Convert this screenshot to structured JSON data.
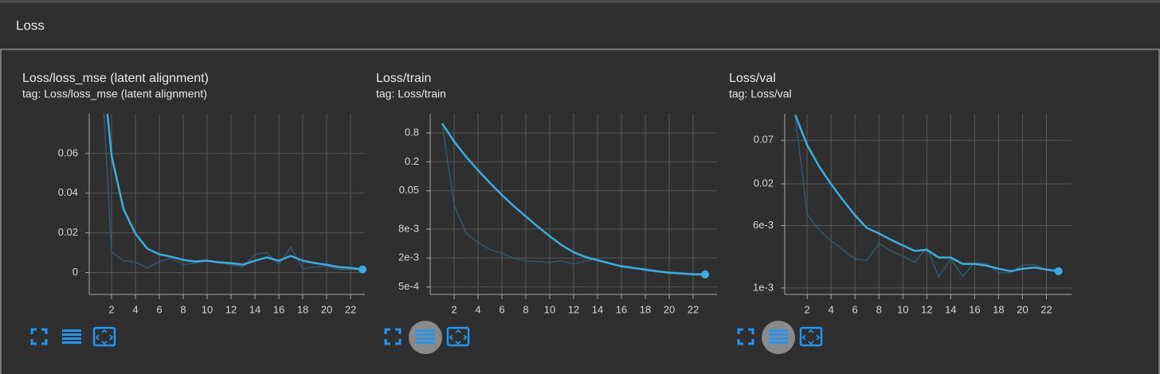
{
  "header": {
    "title": "Loss"
  },
  "chart_data": [
    {
      "type": "line",
      "title": "Loss/loss_mse (latent alignment)",
      "subtitle": "tag: Loss/loss_mse (latent alignment)",
      "x": [
        1,
        2,
        3,
        4,
        5,
        6,
        7,
        8,
        9,
        10,
        11,
        12,
        13,
        14,
        15,
        16,
        17,
        18,
        19,
        20,
        21,
        22,
        23
      ],
      "series": [
        {
          "color": "#34596a",
          "values": [
            0.12,
            0.0104,
            0.006,
            0.0052,
            0.0024,
            0.0056,
            0.0072,
            0.004,
            0.0048,
            0.006,
            0.0048,
            0.004,
            0.0028,
            0.0092,
            0.01,
            0.004,
            0.0128,
            0.002,
            0.0028,
            0.0032,
            0.0016,
            0.0016,
            0.0012
          ]
        },
        {
          "color": "#3aaee0",
          "values": [
            0.12,
            0.059,
            0.032,
            0.0196,
            0.012,
            0.0092,
            0.008,
            0.0064,
            0.0056,
            0.006,
            0.0052,
            0.0048,
            0.004,
            0.006,
            0.0076,
            0.006,
            0.0084,
            0.006,
            0.0048,
            0.004,
            0.0028,
            0.0024,
            0.0016
          ]
        }
      ],
      "xlim": [
        0.13,
        23.2
      ],
      "xticks": [
        2,
        4,
        6,
        8,
        10,
        12,
        14,
        16,
        18,
        20,
        22
      ],
      "ylim": [
        -0.011,
        0.08
      ],
      "yticks": [
        0,
        0.02,
        0.04,
        0.06
      ],
      "log_scale": false,
      "grid": true
    },
    {
      "type": "line",
      "title": "Loss/train",
      "subtitle": "tag: Loss/train",
      "x": [
        1,
        2,
        3,
        4,
        5,
        6,
        7,
        8,
        9,
        10,
        11,
        12,
        13,
        14,
        15,
        16,
        17,
        18,
        19,
        20,
        21,
        22,
        23
      ],
      "series": [
        {
          "color": "#34596a",
          "values": [
            1.26,
            0.025,
            0.0066,
            0.0042,
            0.003,
            0.00255,
            0.00195,
            0.00175,
            0.00168,
            0.00162,
            0.00175,
            0.0015,
            0.00175,
            0.0019,
            0.0015,
            0.00139,
            0.00129,
            0.0011,
            0.00102,
            0.00102,
            0.00099,
            0.00095,
            0.00095
          ]
        },
        {
          "color": "#3aaee0",
          "values": [
            1.26,
            0.53,
            0.255,
            0.134,
            0.073,
            0.041,
            0.024,
            0.0147,
            0.009,
            0.0057,
            0.0037,
            0.00265,
            0.0021,
            0.0018,
            0.00156,
            0.00134,
            0.00124,
            0.00115,
            0.00106,
            0.00099,
            0.00095,
            0.00091,
            0.00091
          ]
        }
      ],
      "xlim": [
        0,
        24
      ],
      "xticks": [
        2,
        4,
        6,
        8,
        10,
        12,
        14,
        16,
        18,
        20,
        22
      ],
      "ylim": [
        0.00035,
        2
      ],
      "yticks": [
        0.8,
        0.2,
        0.05,
        {
          "value": 0.008,
          "label": "8e-3"
        },
        {
          "value": 0.002,
          "label": "2e-3"
        },
        {
          "value": 0.0005,
          "label": "5e-4"
        }
      ],
      "log_scale": true,
      "grid": true
    },
    {
      "type": "line",
      "title": "Loss/val",
      "subtitle": "tag: Loss/val",
      "x": [
        1,
        2,
        3,
        4,
        5,
        6,
        7,
        8,
        9,
        10,
        11,
        12,
        13,
        14,
        15,
        16,
        17,
        18,
        19,
        20,
        21,
        22,
        23
      ],
      "series": [
        {
          "color": "#34596a",
          "values": [
            0.146,
            0.0083,
            0.0053,
            0.0039,
            0.003,
            0.0023,
            0.0022,
            0.0036,
            0.0029,
            0.0025,
            0.0021,
            0.0032,
            0.00138,
            0.0023,
            0.0014,
            0.00207,
            0.002,
            0.00155,
            0.00155,
            0.00195,
            0.00195,
            0.00166,
            0.0016
          ]
        },
        {
          "color": "#3aaee0",
          "values": [
            0.146,
            0.061,
            0.033,
            0.0198,
            0.0125,
            0.0081,
            0.0056,
            0.0048,
            0.004,
            0.0034,
            0.0029,
            0.003,
            0.0024,
            0.0024,
            0.002,
            0.002,
            0.0019,
            0.00174,
            0.00162,
            0.00174,
            0.0018,
            0.0017,
            0.00162
          ]
        }
      ],
      "xlim": [
        0.13,
        24.1
      ],
      "xticks": [
        2,
        4,
        6,
        8,
        10,
        12,
        14,
        16,
        18,
        20,
        22
      ],
      "ylim": [
        0.00083,
        0.15
      ],
      "yticks": [
        0.07,
        0.02,
        {
          "value": 0.006,
          "label": "6e-3"
        },
        {
          "value": 0.001,
          "label": "1e-3"
        }
      ],
      "log_scale": true,
      "grid": true
    }
  ]
}
